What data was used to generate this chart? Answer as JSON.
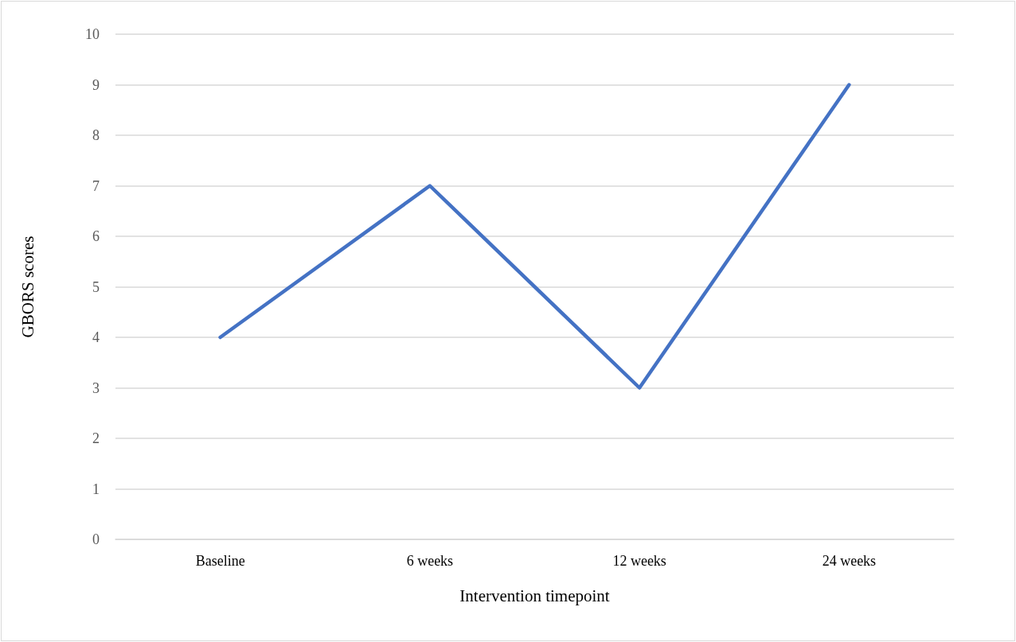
{
  "chart_data": {
    "type": "line",
    "xlabel": "Intervention timepoint",
    "ylabel": "GBORS scores",
    "categories": [
      "Baseline",
      "6 weeks",
      "12 weeks",
      "24 weeks"
    ],
    "series": [
      {
        "color": "#4472c4",
        "values": [
          4,
          7,
          3,
          9
        ]
      }
    ],
    "ylim": [
      0,
      10
    ],
    "yticks": [
      0,
      1,
      2,
      3,
      4,
      5,
      6,
      7,
      8,
      9,
      10
    ],
    "grid": "y",
    "marker": "none",
    "line_style": "solid"
  }
}
